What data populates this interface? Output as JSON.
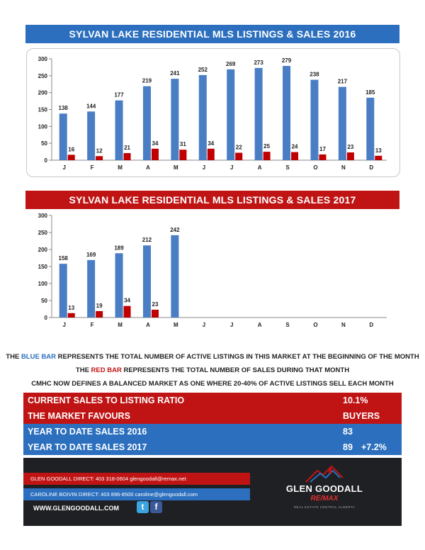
{
  "charts": {
    "y2016": {
      "title": "SYLVAN LAKE RESIDENTIAL MLS LISTINGS & SALES 2016"
    },
    "y2017": {
      "title": "SYLVAN LAKE RESIDENTIAL MLS LISTINGS & SALES 2017"
    }
  },
  "chart_data": [
    {
      "type": "bar",
      "title": "SYLVAN LAKE RESIDENTIAL MLS LISTINGS & SALES 2016",
      "categories": [
        "J",
        "F",
        "M",
        "A",
        "M",
        "J",
        "J",
        "A",
        "S",
        "O",
        "N",
        "D"
      ],
      "series": [
        {
          "values": [
            138,
            144,
            177,
            219,
            241,
            252,
            269,
            273,
            279,
            238,
            217,
            185
          ],
          "color": "#4a7ec4"
        },
        {
          "values": [
            16,
            12,
            21,
            34,
            31,
            34,
            22,
            25,
            24,
            17,
            23,
            13
          ],
          "color": "#c00000"
        }
      ],
      "yticks": [
        0,
        50,
        100,
        150,
        200,
        250,
        300
      ],
      "ylim": [
        0,
        300
      ],
      "grid": false,
      "data_labels": true
    },
    {
      "type": "bar",
      "title": "SYLVAN LAKE RESIDENTIAL MLS LISTINGS & SALES 2017",
      "categories": [
        "J",
        "F",
        "M",
        "A",
        "M",
        "J",
        "J",
        "A",
        "S",
        "O",
        "N",
        "D"
      ],
      "series": [
        {
          "values": [
            158,
            169,
            189,
            212,
            242,
            null,
            null,
            null,
            null,
            null,
            null,
            null
          ],
          "color": "#4a7ec4"
        },
        {
          "values": [
            13,
            19,
            34,
            23,
            null,
            null,
            null,
            null,
            null,
            null,
            null,
            null
          ],
          "color": "#c00000"
        }
      ],
      "yticks": [
        0,
        50,
        100,
        150,
        200,
        250,
        300
      ],
      "ylim": [
        0,
        300
      ],
      "grid": false,
      "data_labels": true
    }
  ],
  "legend": {
    "line1_pre": "THE ",
    "line1_blue": "BLUE BAR",
    "line1_post": " REPRESENTS THE TOTAL NUMBER OF ACTIVE LISTINGS IN THIS MARKET AT THE BEGINNING OF THE MONTH",
    "line2_pre": "THE ",
    "line2_red": "RED BAR",
    "line2_post": " REPRESENTS THE TOTAL NUMBER OF SALES DURING THAT MONTH",
    "line3": "CMHC NOW DEFINES A BALANCED MARKET AS ONE WHERE 20-40% OF ACTIVE LISTINGS SELL EACH MONTH"
  },
  "stats": [
    {
      "label": "CURRENT SALES TO LISTING RATIO",
      "value": "10.1%",
      "change": ""
    },
    {
      "label": "THE MARKET FAVOURS",
      "value": "BUYERS",
      "change": ""
    },
    {
      "label": "YEAR TO DATE SALES 2016",
      "value": "83",
      "change": ""
    },
    {
      "label": "YEAR TO DATE SALES 2017",
      "value": "89",
      "change": "+7.2%"
    }
  ],
  "footer": {
    "contact1": "GLEN GOODALL  DIRECT: 403 318-0604  glengoodall@remax.net",
    "contact2": "CAROLINE BOIVIN DIRECT: 403 896-8500 caroline@glengoodall.com",
    "website": "WWW.GLENGOODALL.COM",
    "twitter_glyph": "t",
    "facebook_glyph": "f",
    "brand_name": "GLEN GOODALL",
    "brand_sub": "RE/MAX",
    "brand_tag": "REAL ESTATE CENTRAL ALBERTA"
  },
  "colors": {
    "blue": "#2b6fbe",
    "red": "#c01414",
    "bar_blue": "#4a7ec4",
    "bar_red": "#c00000",
    "footer_dark": "#1f2023"
  }
}
